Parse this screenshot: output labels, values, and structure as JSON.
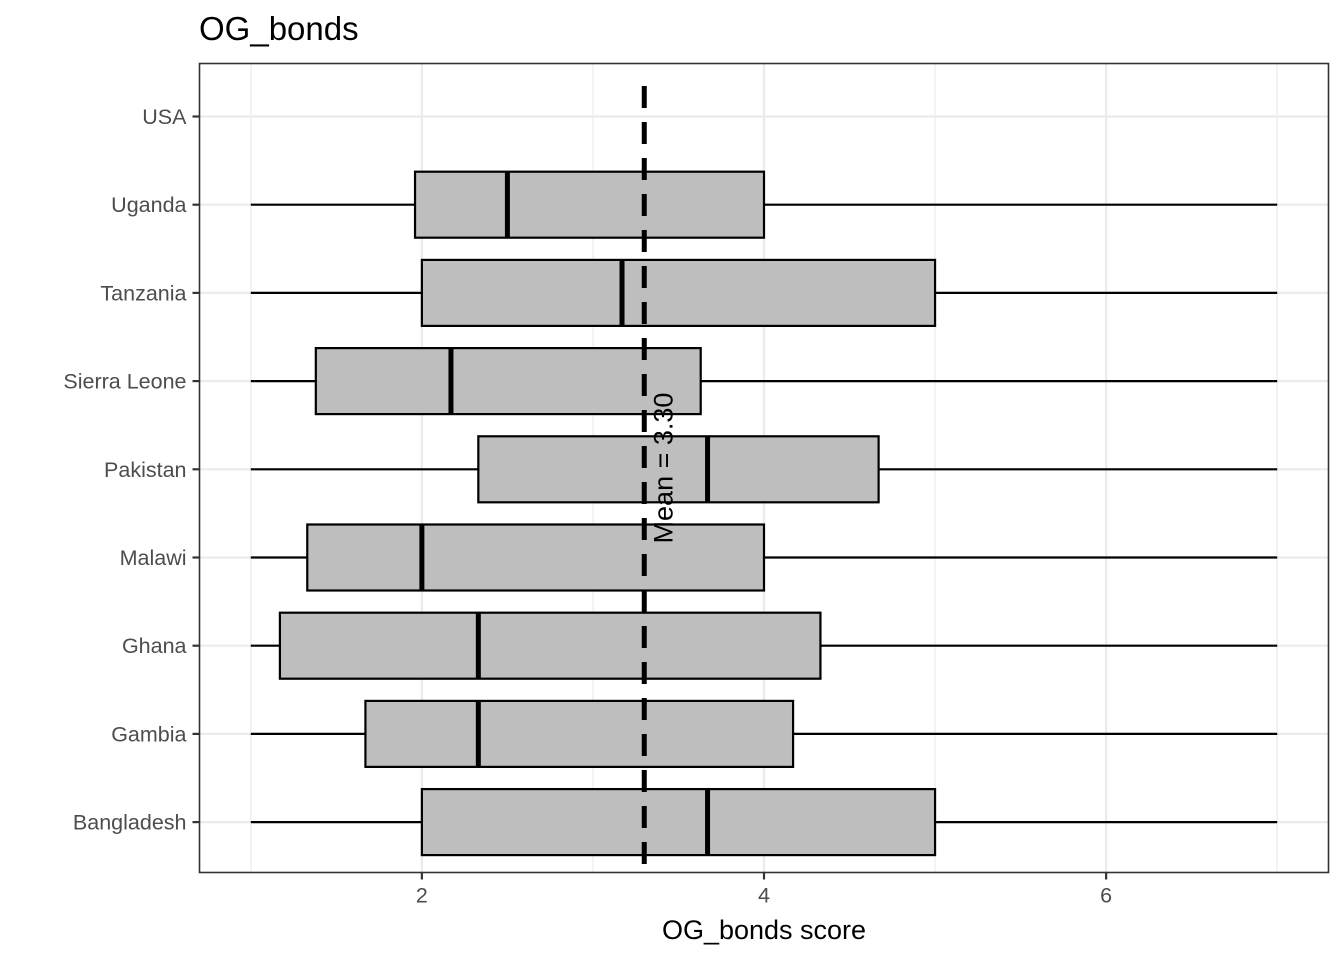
{
  "chart_data": {
    "type": "boxplot",
    "orientation": "horizontal",
    "title": "OG_bonds",
    "xlabel": "OG_bonds score",
    "ylabel": "",
    "xlim": [
      0.7,
      7.3
    ],
    "x_ticks": [
      2,
      4,
      6
    ],
    "grid": true,
    "categories": [
      "USA",
      "Uganda",
      "Tanzania",
      "Sierra Leone",
      "Pakistan",
      "Malawi",
      "Ghana",
      "Gambia",
      "Bangladesh"
    ],
    "boxes": [
      {
        "category": "USA",
        "min": null,
        "q1": null,
        "median": null,
        "q3": null,
        "max": null
      },
      {
        "category": "Uganda",
        "min": 1.0,
        "q1": 1.96,
        "median": 2.5,
        "q3": 4.0,
        "max": 7.0
      },
      {
        "category": "Tanzania",
        "min": 1.0,
        "q1": 2.0,
        "median": 3.17,
        "q3": 5.0,
        "max": 7.0
      },
      {
        "category": "Sierra Leone",
        "min": 1.0,
        "q1": 1.38,
        "median": 2.17,
        "q3": 3.63,
        "max": 7.0
      },
      {
        "category": "Pakistan",
        "min": 1.0,
        "q1": 2.33,
        "median": 3.67,
        "q3": 4.67,
        "max": 7.0
      },
      {
        "category": "Malawi",
        "min": 1.0,
        "q1": 1.33,
        "median": 2.0,
        "q3": 4.0,
        "max": 7.0
      },
      {
        "category": "Ghana",
        "min": 1.0,
        "q1": 1.17,
        "median": 2.33,
        "q3": 4.33,
        "max": 7.0
      },
      {
        "category": "Gambia",
        "min": 1.0,
        "q1": 1.67,
        "median": 2.33,
        "q3": 4.17,
        "max": 7.0
      },
      {
        "category": "Bangladesh",
        "min": 1.0,
        "q1": 2.0,
        "median": 3.67,
        "q3": 5.0,
        "max": 7.0
      }
    ],
    "reference_line": {
      "value": 3.3,
      "style": "dashed",
      "label": "Mean = 3.30"
    },
    "colors": {
      "box_fill": "#bebebe",
      "box_stroke": "#000000",
      "grid": "#ebebeb",
      "panel_border": "#333333",
      "tick_text": "#4d4d4d"
    }
  }
}
